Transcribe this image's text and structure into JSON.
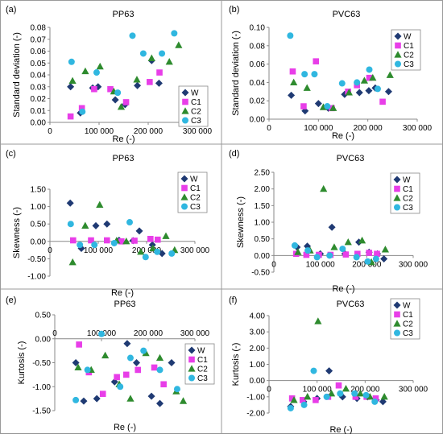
{
  "legend_labels": [
    "W",
    "C1",
    "C2",
    "C3"
  ],
  "series_colors": [
    "#1f3a73",
    "#e83ee8",
    "#2e8b2e",
    "#30b7e0"
  ],
  "series_markers": [
    "diamond",
    "square",
    "triangle",
    "circle"
  ],
  "chart_data": [
    {
      "id": "a",
      "panel_label": "(a)",
      "title": "PP63",
      "type": "scatter",
      "xlabel": "Re (-)",
      "ylabel": "Standard deviation (-)",
      "xlim": [
        0,
        300000
      ],
      "ylim": [
        0,
        0.08
      ],
      "xticks": [
        0,
        100000,
        200000,
        300000
      ],
      "xticklabels": [
        "0",
        "100 000",
        "200 000",
        "300 000"
      ],
      "yticks": [
        0,
        0.01,
        0.02,
        0.03,
        0.04,
        0.05,
        0.06,
        0.07,
        0.08
      ],
      "yticklabels": [
        "0.00",
        "0.01",
        "0.02",
        "0.03",
        "0.04",
        "0.05",
        "0.06",
        "0.07",
        "0.08"
      ],
      "legend_position": "right",
      "series": [
        {
          "name": "W",
          "x": [
            42000,
            62000,
            87000,
            98000,
            133000,
            153000,
            178000,
            207000,
            222000
          ],
          "y": [
            0.03,
            0.008,
            0.029,
            0.03,
            0.019,
            0.015,
            0.031,
            0.052,
            0.033
          ]
        },
        {
          "name": "C1",
          "x": [
            42000,
            65000,
            90000,
            123000,
            155000,
            203000,
            223000
          ],
          "y": [
            0.005,
            0.012,
            0.028,
            0.028,
            0.017,
            0.034,
            0.042
          ]
        },
        {
          "name": "C2",
          "x": [
            46000,
            72000,
            102000,
            130000,
            145000,
            177000,
            207000,
            243000,
            262000
          ],
          "y": [
            0.035,
            0.043,
            0.047,
            0.026,
            0.013,
            0.036,
            0.054,
            0.051,
            0.065
          ]
        },
        {
          "name": "C3",
          "x": [
            44000,
            66000,
            95000,
            138000,
            168000,
            190000,
            228000,
            253000
          ],
          "y": [
            0.051,
            0.009,
            0.042,
            0.025,
            0.073,
            0.058,
            0.058,
            0.075
          ]
        }
      ]
    },
    {
      "id": "b",
      "panel_label": "(b)",
      "title": "PVC63",
      "type": "scatter",
      "xlabel": "Re (-)",
      "ylabel": "Standard deviation (-)",
      "xlim": [
        0,
        300000
      ],
      "ylim": [
        0,
        0.1
      ],
      "xticks": [
        0,
        100000,
        200000,
        300000
      ],
      "xticklabels": [
        "0",
        "100 000",
        "200 000",
        "300 000"
      ],
      "yticks": [
        0,
        0.02,
        0.04,
        0.06,
        0.08,
        0.1
      ],
      "yticklabels": [
        "0.00",
        "0.02",
        "0.04",
        "0.06",
        "0.08",
        "0.10"
      ],
      "legend_position": "top-right",
      "series": [
        {
          "name": "W",
          "x": [
            45000,
            73000,
            100000,
            120000,
            153000,
            183000,
            202000,
            215000,
            242000
          ],
          "y": [
            0.026,
            0.009,
            0.017,
            0.012,
            0.027,
            0.029,
            0.031,
            0.034,
            0.03
          ]
        },
        {
          "name": "C1",
          "x": [
            48000,
            70000,
            95000,
            127000,
            160000,
            178000,
            203000,
            230000
          ],
          "y": [
            0.052,
            0.014,
            0.063,
            0.012,
            0.03,
            0.037,
            0.045,
            0.019
          ]
        },
        {
          "name": "C2",
          "x": [
            50000,
            77000,
            110000,
            130000,
            162000,
            193000,
            210000,
            245000
          ],
          "y": [
            0.04,
            0.034,
            0.013,
            0.012,
            0.029,
            0.042,
            0.045,
            0.048
          ]
        },
        {
          "name": "C3",
          "x": [
            43000,
            72000,
            92000,
            118000,
            148000,
            178000,
            203000,
            220000
          ],
          "y": [
            0.091,
            0.049,
            0.049,
            0.014,
            0.039,
            0.04,
            0.054,
            0.033
          ]
        }
      ]
    },
    {
      "id": "c",
      "panel_label": "(c)",
      "title": "PP63",
      "type": "scatter",
      "xlabel": "Re (-)",
      "ylabel": "Skewness (-)",
      "xlim": [
        0,
        300000
      ],
      "ylim": [
        -1.0,
        1.5
      ],
      "xticks": [
        0,
        100000,
        200000,
        300000
      ],
      "xticklabels": [
        "0",
        "100 000",
        "200 000",
        "300 000"
      ],
      "yticks": [
        -1.0,
        -0.5,
        0,
        0.5,
        1.0,
        1.5
      ],
      "yticklabels": [
        "-1.00",
        "-0.50",
        "0.00",
        "0.50",
        "1.00",
        "1.50"
      ],
      "legend_position": "right",
      "series": [
        {
          "name": "W",
          "x": [
            42000,
            65000,
            95000,
            118000,
            143000,
            172000,
            185000,
            212000,
            232000
          ],
          "y": [
            1.1,
            -0.2,
            0.45,
            0.5,
            0.03,
            0.02,
            0.3,
            -0.1,
            -0.35
          ]
        },
        {
          "name": "C1",
          "x": [
            48000,
            85000,
            118000,
            148000,
            175000,
            208000,
            223000
          ],
          "y": [
            0.03,
            0.03,
            0.03,
            0.0,
            0.02,
            0.07,
            0.05
          ]
        },
        {
          "name": "C2",
          "x": [
            47000,
            73000,
            103000,
            138000,
            158000,
            188000,
            213000,
            240000,
            258000
          ],
          "y": [
            -0.6,
            0.45,
            1.05,
            0.02,
            0.0,
            -0.3,
            -0.2,
            0.15,
            -0.25
          ]
        },
        {
          "name": "C3",
          "x": [
            43000,
            62000,
            92000,
            133000,
            165000,
            198000,
            222000,
            252000
          ],
          "y": [
            0.5,
            -0.1,
            -0.1,
            -0.05,
            0.55,
            -0.45,
            -0.3,
            -0.35
          ]
        }
      ]
    },
    {
      "id": "d",
      "panel_label": "(d)",
      "title": "PVC63",
      "type": "scatter",
      "xlabel": "Re (-)",
      "ylabel": "Skewness (-)",
      "xlim": [
        0,
        300000
      ],
      "ylim": [
        -0.5,
        2.5
      ],
      "xticks": [
        0,
        100000,
        200000,
        300000
      ],
      "xticklabels": [
        "0",
        "100 000",
        "200 000",
        "300 000"
      ],
      "yticks": [
        -0.5,
        0,
        0.5,
        1.0,
        1.5,
        2.0,
        2.5
      ],
      "yticklabels": [
        "-0.50",
        "0.00",
        "0.50",
        "1.00",
        "1.50",
        "2.00",
        "2.50"
      ],
      "legend_position": "top-right",
      "series": [
        {
          "name": "W",
          "x": [
            50000,
            72000,
            100000,
            125000,
            153000,
            183000,
            205000,
            223000,
            237000
          ],
          "y": [
            0.25,
            0.28,
            0.05,
            0.85,
            0.05,
            0.4,
            0.1,
            0.05,
            -0.1
          ]
        },
        {
          "name": "C1",
          "x": [
            48000,
            70000,
            97000,
            122000,
            155000,
            180000,
            205000,
            222000
          ],
          "y": [
            0.05,
            0.02,
            0.02,
            0.02,
            0.03,
            0.05,
            0.08,
            0.05
          ]
        },
        {
          "name": "C2",
          "x": [
            52000,
            78000,
            107000,
            130000,
            160000,
            190000,
            210000,
            240000
          ],
          "y": [
            0.1,
            0.15,
            2.0,
            0.25,
            0.4,
            0.45,
            -0.2,
            0.18
          ]
        },
        {
          "name": "C3",
          "x": [
            45000,
            73000,
            93000,
            120000,
            148000,
            178000,
            202000,
            220000
          ],
          "y": [
            0.3,
            0.15,
            -0.05,
            0.0,
            0.2,
            -0.05,
            -0.18,
            -0.1
          ]
        }
      ]
    },
    {
      "id": "e",
      "panel_label": "(e)",
      "title": "PP63",
      "type": "scatter",
      "xlabel": "Re (-)",
      "ylabel": "Kurtosis (-)",
      "xlim": [
        0,
        300000
      ],
      "ylim": [
        -1.5,
        0.5
      ],
      "xticks": [
        0,
        100000,
        200000,
        300000
      ],
      "xticklabels": [
        "0",
        "100 000",
        "200 000",
        "300 000"
      ],
      "yticks": [
        -1.5,
        -1.0,
        -0.5,
        0,
        0.5
      ],
      "yticklabels": [
        "-1.50",
        "-1.00",
        "-0.50",
        "0.00",
        "0.50"
      ],
      "xaxis_position": "top",
      "legend_position": "right",
      "series": [
        {
          "name": "W",
          "x": [
            45000,
            62000,
            90000,
            128000,
            155000,
            175000,
            207000,
            225000,
            250000
          ],
          "y": [
            -0.5,
            -1.3,
            -1.25,
            -0.9,
            -0.1,
            -0.5,
            -1.2,
            -1.35,
            -0.5
          ]
        },
        {
          "name": "C1",
          "x": [
            52000,
            73000,
            103000,
            133000,
            153000,
            178000,
            213000,
            233000
          ],
          "y": [
            -0.12,
            -0.7,
            -1.15,
            -0.8,
            -0.75,
            -0.65,
            -0.6,
            -0.95
          ]
        },
        {
          "name": "C2",
          "x": [
            50000,
            78000,
            108000,
            138000,
            162000,
            195000,
            225000,
            260000,
            275000
          ],
          "y": [
            -0.6,
            -0.65,
            -0.35,
            -0.95,
            -1.25,
            -0.3,
            -0.4,
            -1.1,
            -1.3
          ]
        },
        {
          "name": "C3",
          "x": [
            45000,
            70000,
            100000,
            140000,
            162000,
            190000,
            225000,
            262000
          ],
          "y": [
            -1.28,
            -0.65,
            0.1,
            -1.0,
            -0.4,
            -0.25,
            -0.65,
            -1.05
          ]
        }
      ]
    },
    {
      "id": "f",
      "panel_label": "(f)",
      "title": "PVC63",
      "type": "scatter",
      "xlabel": "Re (-)",
      "ylabel": "Kurtosis (-)",
      "xlim": [
        0,
        300000
      ],
      "ylim": [
        -2.0,
        4.0
      ],
      "xticks": [
        0,
        100000,
        200000,
        300000
      ],
      "xticklabels": [
        "0",
        "100 000",
        "200 000",
        "300 000"
      ],
      "yticks": [
        -2.0,
        -1.0,
        0,
        1.0,
        2.0,
        3.0,
        4.0
      ],
      "yticklabels": [
        "-2.00",
        "-1.00",
        "0.00",
        "1.00",
        "2.00",
        "3.00",
        "4.00"
      ],
      "legend_position": "top-right",
      "series": [
        {
          "name": "W",
          "x": [
            45000,
            72000,
            100000,
            125000,
            153000,
            183000,
            205000,
            223000,
            237000
          ],
          "y": [
            -1.6,
            -1.3,
            -1.1,
            0.6,
            -1.0,
            -1.1,
            -1.0,
            -1.2,
            -1.3
          ]
        },
        {
          "name": "C1",
          "x": [
            48000,
            70000,
            97000,
            123000,
            145000,
            180000,
            203000,
            222000
          ],
          "y": [
            -1.1,
            -1.2,
            -1.2,
            -1.0,
            -0.3,
            -1.0,
            -1.0,
            -1.1
          ]
        },
        {
          "name": "C2",
          "x": [
            52000,
            80000,
            102000,
            130000,
            160000,
            190000,
            210000,
            240000
          ],
          "y": [
            -1.2,
            -1.0,
            3.65,
            -0.8,
            -0.5,
            -0.8,
            -1.0,
            -1.0
          ]
        },
        {
          "name": "C3",
          "x": [
            45000,
            73000,
            93000,
            120000,
            148000,
            178000,
            202000,
            220000
          ],
          "y": [
            -1.7,
            -1.5,
            0.6,
            -1.0,
            -0.8,
            -0.8,
            -0.9,
            -1.3
          ]
        }
      ]
    }
  ]
}
